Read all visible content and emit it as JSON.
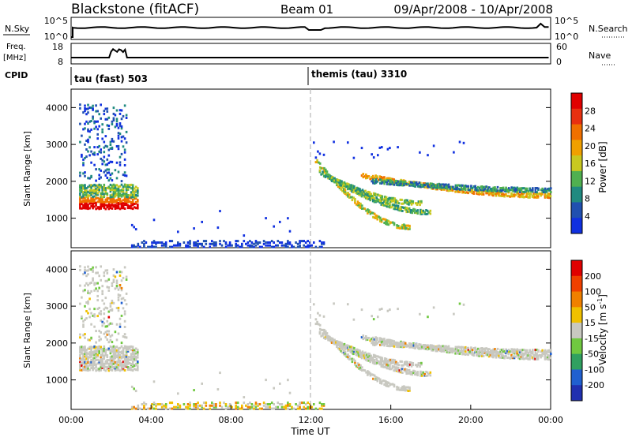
{
  "header": {
    "title": "Blackstone (fitACF)",
    "beam": "Beam 01",
    "dates": "09/Apr/2008 - 10/Apr/2008"
  },
  "top_panels": {
    "nsky_label": "N.Sky",
    "nsky_ticks": [
      "10^5",
      "10^0"
    ],
    "nsearch_label": "N.Search",
    "nsearch_ticks": [
      "10^5",
      "10^0"
    ],
    "freq_label_1": "Freq.",
    "freq_label_2": "[MHz]",
    "freq_ticks": [
      "18",
      "8"
    ],
    "nave_label": "Nave",
    "nave_ticks": [
      "60",
      "0"
    ],
    "cpid_label": "CPID",
    "cpid_segments": [
      {
        "name": "tau (fast) 503",
        "start_hour": 0
      },
      {
        "name": "themis (tau) 3310",
        "start_hour": 12
      }
    ]
  },
  "chart_data": [
    {
      "type": "heatmap",
      "panel": "power",
      "ylabel": "Slant Range [km]",
      "ylim": [
        200,
        4500
      ],
      "xlim": [
        0,
        24
      ],
      "y_ticks": [
        1000,
        2000,
        3000,
        4000
      ],
      "colorbar": {
        "label": "Power [dB]",
        "ticks": [
          "4",
          "8",
          "12",
          "16",
          "20",
          "24",
          "28"
        ],
        "colors": [
          "#1030e0",
          "#2050b0",
          "#208a80",
          "#50b050",
          "#c8c820",
          "#f0a000",
          "#f07000",
          "#e83010",
          "#e00000"
        ]
      }
    },
    {
      "type": "heatmap",
      "panel": "velocity",
      "ylabel": "Slant Range [km]",
      "ylim": [
        200,
        4500
      ],
      "xlim": [
        0,
        24
      ],
      "y_ticks": [
        1000,
        2000,
        3000,
        4000
      ],
      "xlabel": "Time UT",
      "x_ticks": [
        "00:00",
        "04:00",
        "08:00",
        "12:00",
        "16:00",
        "20:00",
        "00:00"
      ],
      "colorbar": {
        "label": "Velocity [m s",
        "label_sup": "-1",
        "label_end": "]",
        "ticks": [
          "200",
          "100",
          "50",
          "15",
          "-15",
          "-50",
          "-100",
          "-200"
        ],
        "colors": [
          "#2030b0",
          "#2060d0",
          "#30a060",
          "#70c840",
          "#c8c8c0",
          "#f0c000",
          "#f08000",
          "#f04000",
          "#e00000"
        ]
      }
    }
  ]
}
